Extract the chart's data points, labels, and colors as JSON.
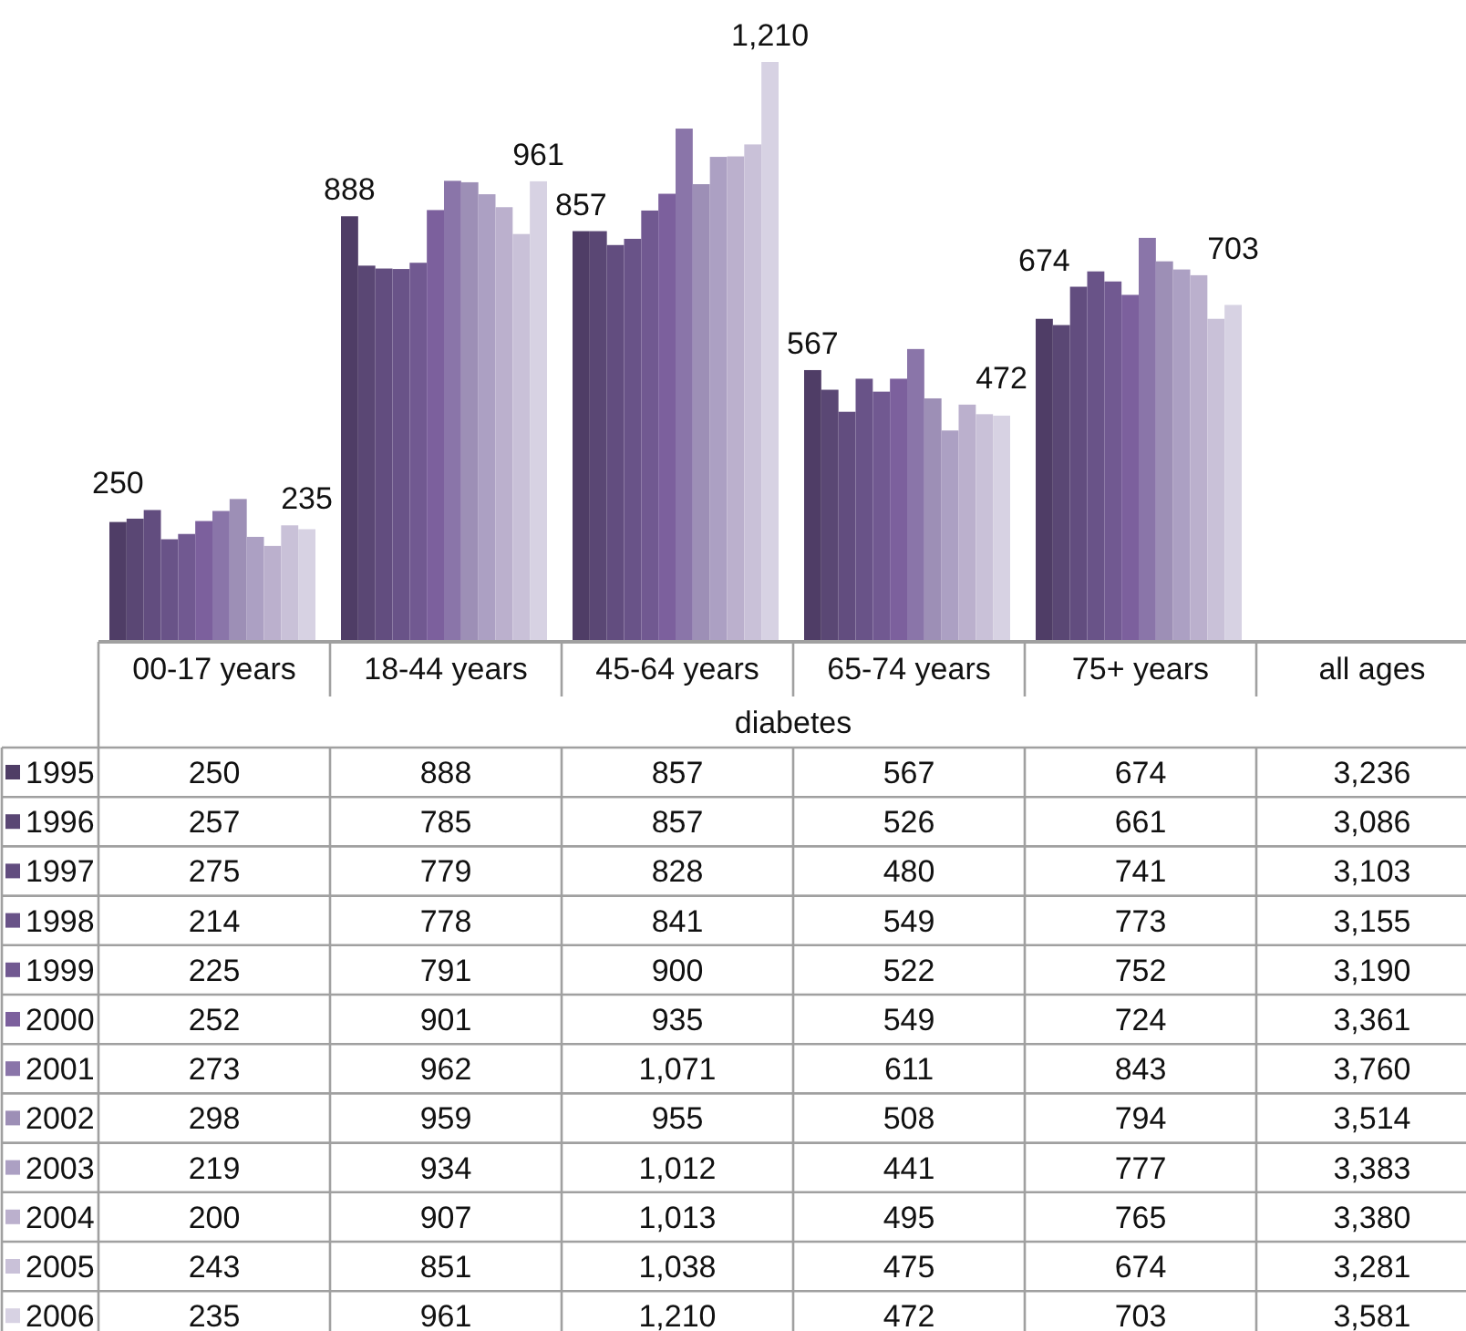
{
  "chart_data": {
    "type": "bar",
    "xlabel": "diabetes",
    "legend": "bottom",
    "categories": [
      "00-17 years",
      "18-44 years",
      "45-64 years",
      "65-74 years",
      "75+ years",
      "all ages"
    ],
    "series": [
      {
        "name": "1995",
        "color": "#4f3d66",
        "values": [
          250,
          888,
          857,
          567,
          674,
          null
        ],
        "value_labels": [
          "250",
          "888",
          "857",
          "567",
          "674",
          "3,236"
        ]
      },
      {
        "name": "1996",
        "color": "#5a4774",
        "values": [
          257,
          785,
          857,
          526,
          661,
          null
        ],
        "value_labels": [
          "257",
          "785",
          "857",
          "526",
          "661",
          "3,086"
        ]
      },
      {
        "name": "1997",
        "color": "#624d7f",
        "values": [
          275,
          779,
          828,
          480,
          741,
          null
        ],
        "value_labels": [
          "275",
          "779",
          "828",
          "480",
          "741",
          "3,103"
        ]
      },
      {
        "name": "1998",
        "color": "#695388",
        "values": [
          214,
          778,
          841,
          549,
          773,
          null
        ],
        "value_labels": [
          "214",
          "778",
          "841",
          "549",
          "773",
          "3,155"
        ]
      },
      {
        "name": "1999",
        "color": "#715991",
        "values": [
          225,
          791,
          900,
          522,
          752,
          null
        ],
        "value_labels": [
          "225",
          "791",
          "900",
          "522",
          "752",
          "3,190"
        ]
      },
      {
        "name": "2000",
        "color": "#7c609d",
        "values": [
          252,
          901,
          935,
          549,
          724,
          null
        ],
        "value_labels": [
          "252",
          "901",
          "935",
          "549",
          "724",
          "3,361"
        ]
      },
      {
        "name": "2001",
        "color": "#8a75a9",
        "values": [
          273,
          962,
          1071,
          611,
          843,
          null
        ],
        "value_labels": [
          "273",
          "962",
          "1,071",
          "611",
          "843",
          "3,760"
        ]
      },
      {
        "name": "2002",
        "color": "#9d8fb6",
        "values": [
          298,
          959,
          955,
          508,
          794,
          null
        ],
        "value_labels": [
          "298",
          "959",
          "955",
          "508",
          "794",
          "3,514"
        ]
      },
      {
        "name": "2003",
        "color": "#aca0c3",
        "values": [
          219,
          934,
          1012,
          441,
          777,
          null
        ],
        "value_labels": [
          "219",
          "934",
          "1,012",
          "441",
          "777",
          "3,383"
        ]
      },
      {
        "name": "2004",
        "color": "#bbb0cd",
        "values": [
          200,
          907,
          1013,
          495,
          765,
          null
        ],
        "value_labels": [
          "200",
          "907",
          "1,013",
          "495",
          "765",
          "3,380"
        ]
      },
      {
        "name": "2005",
        "color": "#c9c1d8",
        "values": [
          243,
          851,
          1038,
          475,
          674,
          null
        ],
        "value_labels": [
          "243",
          "851",
          "1,038",
          "475",
          "674",
          "3,281"
        ]
      },
      {
        "name": "2006",
        "color": "#d7d2e3",
        "values": [
          235,
          961,
          1210,
          472,
          703,
          null
        ],
        "value_labels": [
          "235",
          "961",
          "1,210",
          "472",
          "703",
          "3,581"
        ]
      }
    ]
  }
}
